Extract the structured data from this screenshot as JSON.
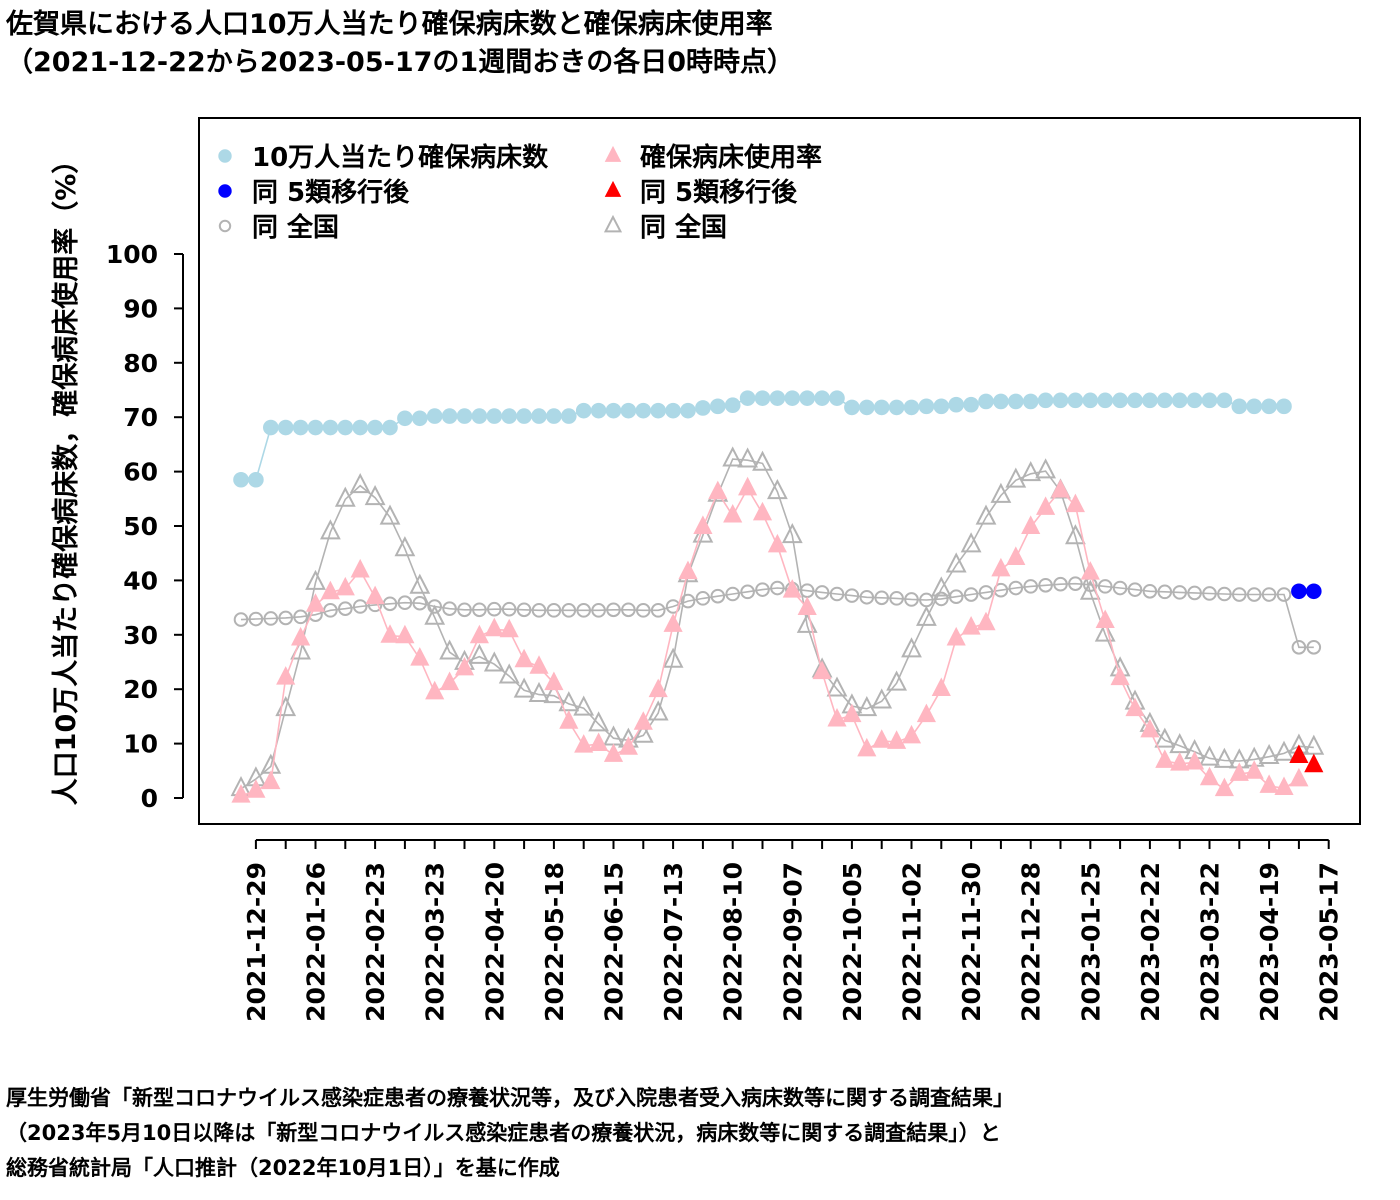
{
  "title": {
    "line1": "佐賀県における人口10万人当たり確保病床数と確保病床使用率",
    "line2": "（2021-12-22から2023-05-17の1週間おきの各日0時時点）"
  },
  "source": {
    "line1": "厚生労働省「新型コロナウイルス感染症患者の療養状況等，及び入院患者受入病床数等に関する調査結果」",
    "line2": "（2023年5月10日以降は「新型コロナウイルス感染症患者の療養状況，病床数等に関する調査結果」）と",
    "line3": "総務省統計局「人口推計（2022年10月1日）」を基に作成"
  },
  "chart_data": {
    "type": "line",
    "ylabel": "人口10万人当たり確保病床数，確保病床使用率（%）",
    "ylim": [
      0,
      100
    ],
    "yticks": [
      0,
      10,
      20,
      30,
      40,
      50,
      60,
      70,
      80,
      90,
      100
    ],
    "x_start": "2021-12-22",
    "x_end": "2023-05-17",
    "x_interval_days": 7,
    "xtick_labels": [
      "2021-12-29",
      "2022-01-26",
      "2022-02-23",
      "2022-03-23",
      "2022-04-20",
      "2022-05-18",
      "2022-06-15",
      "2022-07-13",
      "2022-08-10",
      "2022-09-07",
      "2022-10-05",
      "2022-11-02",
      "2022-11-30",
      "2022-12-28",
      "2023-01-25",
      "2023-02-22",
      "2023-03-22",
      "2023-04-19",
      "2023-05-17"
    ],
    "legend_position": "top",
    "grid": false,
    "series": [
      {
        "name": "10万人当たり確保病床数",
        "marker": "filled-circle",
        "color": "#add8e6",
        "connected": true,
        "values": [
          58.5,
          58.5,
          68.1,
          68.1,
          68.1,
          68.1,
          68.1,
          68.1,
          68.1,
          68.1,
          68.1,
          69.8,
          69.8,
          70.2,
          70.2,
          70.2,
          70.2,
          70.2,
          70.2,
          70.2,
          70.2,
          70.2,
          70.2,
          71.2,
          71.2,
          71.2,
          71.2,
          71.2,
          71.2,
          71.2,
          71.2,
          71.7,
          72.0,
          72.2,
          73.5,
          73.5,
          73.5,
          73.5,
          73.5,
          73.5,
          73.5,
          71.8,
          71.8,
          71.8,
          71.8,
          71.8,
          72.0,
          72.0,
          72.3,
          72.3,
          72.9,
          72.9,
          72.9,
          72.9,
          73.1,
          73.1,
          73.1,
          73.1,
          73.1,
          73.1,
          73.1,
          73.1,
          73.1,
          73.1,
          73.1,
          73.1,
          73.1,
          72.0,
          72.0,
          72.0,
          72.0,
          null,
          null
        ]
      },
      {
        "name": "同 5類移行後",
        "marker": "filled-circle",
        "color": "#0000ff",
        "connected": false,
        "values": [
          null,
          null,
          null,
          null,
          null,
          null,
          null,
          null,
          null,
          null,
          null,
          null,
          null,
          null,
          null,
          null,
          null,
          null,
          null,
          null,
          null,
          null,
          null,
          null,
          null,
          null,
          null,
          null,
          null,
          null,
          null,
          null,
          null,
          null,
          null,
          null,
          null,
          null,
          null,
          null,
          null,
          null,
          null,
          null,
          null,
          null,
          null,
          null,
          null,
          null,
          null,
          null,
          null,
          null,
          null,
          null,
          null,
          null,
          null,
          null,
          null,
          null,
          null,
          null,
          null,
          null,
          null,
          null,
          null,
          null,
          null,
          38.0,
          38.0
        ]
      },
      {
        "name": "同 全国",
        "marker": "open-circle",
        "color": "#b3b3b3",
        "connected": true,
        "values": [
          32.8,
          32.9,
          33.0,
          33.1,
          33.3,
          33.7,
          34.5,
          34.8,
          35.2,
          35.5,
          35.7,
          35.9,
          35.8,
          35.2,
          34.8,
          34.6,
          34.6,
          34.7,
          34.7,
          34.6,
          34.5,
          34.5,
          34.5,
          34.5,
          34.5,
          34.6,
          34.6,
          34.5,
          34.5,
          35.2,
          36.2,
          36.7,
          37.1,
          37.5,
          37.9,
          38.3,
          38.6,
          38.4,
          38.1,
          37.8,
          37.5,
          37.2,
          36.9,
          36.8,
          36.7,
          36.5,
          36.4,
          36.6,
          37.0,
          37.4,
          37.8,
          38.2,
          38.6,
          38.9,
          39.1,
          39.3,
          39.4,
          39.2,
          38.9,
          38.6,
          38.3,
          38.0,
          37.9,
          37.8,
          37.7,
          37.6,
          37.5,
          37.4,
          37.4,
          37.4,
          37.4,
          27.7,
          27.7
        ]
      },
      {
        "name": "確保病床使用率",
        "marker": "filled-triangle",
        "color": "#ffb6c1",
        "connected": true,
        "values": [
          0.4,
          1.3,
          2.9,
          22.1,
          29.3,
          35.5,
          37.8,
          38.5,
          41.8,
          36.9,
          29.8,
          29.7,
          25.6,
          19.4,
          21.1,
          23.8,
          29.7,
          31.0,
          30.8,
          25.3,
          24.1,
          21.1,
          14.0,
          9.6,
          9.9,
          7.9,
          9.2,
          13.8,
          19.8,
          31.8,
          41.5,
          49.8,
          56.2,
          51.9,
          56.9,
          52.3,
          46.4,
          38.1,
          34.9,
          23.1,
          14.4,
          15.2,
          8.9,
          10.5,
          10.3,
          11.3,
          15.2,
          20.0,
          29.3,
          31.3,
          32.1,
          42.0,
          44.1,
          49.8,
          53.3,
          56.5,
          53.8,
          41.4,
          32.5,
          22.0,
          16.3,
          12.4,
          6.8,
          6.3,
          6.5,
          3.6,
          1.6,
          4.4,
          4.8,
          2.2,
          1.8,
          3.4,
          null
        ]
      },
      {
        "name": "同 5類移行後",
        "marker": "filled-triangle",
        "color": "#ff0000",
        "connected": false,
        "values": [
          null,
          null,
          null,
          null,
          null,
          null,
          null,
          null,
          null,
          null,
          null,
          null,
          null,
          null,
          null,
          null,
          null,
          null,
          null,
          null,
          null,
          null,
          null,
          null,
          null,
          null,
          null,
          null,
          null,
          null,
          null,
          null,
          null,
          null,
          null,
          null,
          null,
          null,
          null,
          null,
          null,
          null,
          null,
          null,
          null,
          null,
          null,
          null,
          null,
          null,
          null,
          null,
          null,
          null,
          null,
          null,
          null,
          null,
          null,
          null,
          null,
          null,
          null,
          null,
          null,
          null,
          null,
          null,
          null,
          null,
          null,
          7.7,
          6.0
        ]
      },
      {
        "name": "同 全国",
        "marker": "open-triangle",
        "color": "#b3b3b3",
        "connected": true,
        "values": [
          1.7,
          3.5,
          5.8,
          16.4,
          26.8,
          39.6,
          48.9,
          54.9,
          57.4,
          55.2,
          51.6,
          45.8,
          38.9,
          33.2,
          26.8,
          24.9,
          26.0,
          24.6,
          22.4,
          19.8,
          19.0,
          18.8,
          17.3,
          16.5,
          13.6,
          11.0,
          10.6,
          11.5,
          15.6,
          25.3,
          41.0,
          48.3,
          55.8,
          62.3,
          62.1,
          61.5,
          56.3,
          48.2,
          31.7,
          23.5,
          20.0,
          16.9,
          16.4,
          17.8,
          21.1,
          27.2,
          33.0,
          38.4,
          42.8,
          46.5,
          51.6,
          55.6,
          58.4,
          59.6,
          60.1,
          56.4,
          48.0,
          37.8,
          30.1,
          23.7,
          17.6,
          13.5,
          10.6,
          9.6,
          8.5,
          7.3,
          6.9,
          6.8,
          7.1,
          7.6,
          8.2,
          9.5,
          9.3
        ]
      }
    ]
  }
}
